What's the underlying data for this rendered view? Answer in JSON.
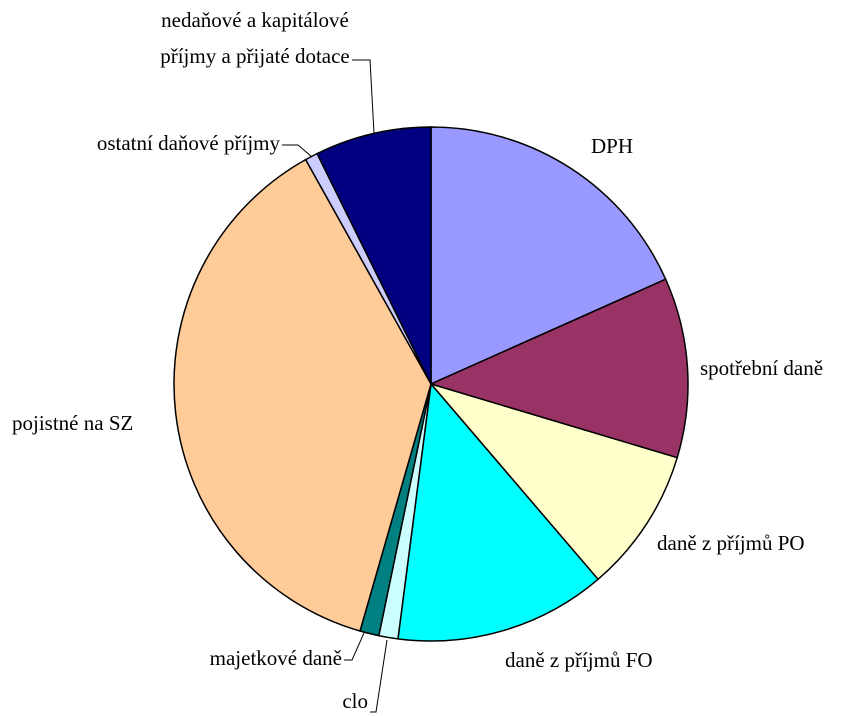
{
  "chart_data": {
    "type": "pie",
    "categories": [
      "DPH",
      "spotřební daně",
      "daně z příjmů PO",
      "daně z příjmů FO",
      "clo",
      "majetkové daně",
      "pojistné na SZ",
      "ostatní daňové příjmy",
      "nedaňové a kapitálové příjmy a přijaté dotace"
    ],
    "values": [
      18.3,
      11.3,
      9.1,
      13.3,
      1.2,
      1.2,
      37.4,
      0.8,
      7.3
    ],
    "colors": [
      "#9999ff",
      "#993366",
      "#ffffcc",
      "#00ffff",
      "#ccffff",
      "#008080",
      "#ffcc99",
      "#ccccff",
      "#000080"
    ]
  }
}
